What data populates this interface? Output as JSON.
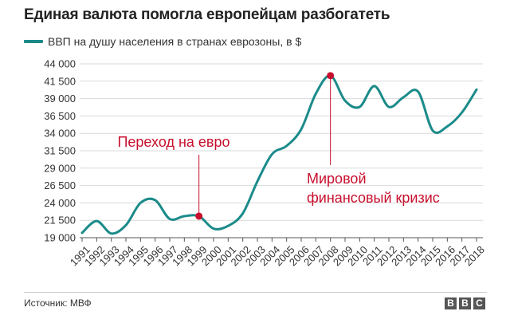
{
  "header": {
    "title": "Единая валюта помогла европейцам разбогатеть"
  },
  "legend": {
    "label": "ВВП на душу населения в странах еврозоны, в $"
  },
  "footer": {
    "source": "Источник: МВФ",
    "logo_letters": [
      "B",
      "B",
      "C"
    ]
  },
  "colors": {
    "line": "#1b8b8a",
    "marker": "#c8102e",
    "annotation": "#c8102e",
    "grid": "#d9d9d9",
    "axis": "#555555"
  },
  "chart_data": {
    "type": "line",
    "title": "Единая валюта помогла европейцам разбогатеть",
    "ylim": [
      19000,
      44000
    ],
    "grid": true,
    "y_ticks": [
      19000,
      21500,
      24000,
      26500,
      29000,
      31500,
      34000,
      36500,
      39000,
      41500,
      44000
    ],
    "y_tick_labels": [
      "19 000",
      "21 500",
      "24 000",
      "26 500",
      "29 000",
      "31 500",
      "34 000",
      "36 500",
      "39 000",
      "41 500",
      "44 000"
    ],
    "categories": [
      "1991",
      "1992",
      "1993",
      "1994",
      "1995",
      "1996",
      "1997",
      "1998",
      "1999",
      "2000",
      "2001",
      "2002",
      "2003",
      "2004",
      "2005",
      "2006",
      "2007",
      "2008",
      "2009",
      "2010",
      "2011",
      "2012",
      "2013",
      "2014",
      "2015",
      "2016",
      "2017",
      "2018"
    ],
    "series": [
      {
        "name": "ВВП на душу населения в странах еврозоны, в $",
        "values": [
          19700,
          21400,
          19600,
          20800,
          24000,
          24400,
          21700,
          22100,
          22100,
          20300,
          20700,
          22500,
          27100,
          31000,
          32200,
          34600,
          39700,
          42300,
          38700,
          37800,
          40800,
          37800,
          39200,
          40000,
          34400,
          35000,
          37000,
          40300
        ]
      }
    ],
    "annotations": [
      {
        "text": "Переход на евро",
        "x": "1999",
        "y": 22100,
        "lines": [
          "Переход на евро"
        ]
      },
      {
        "text": "Мировой финансовый кризис",
        "x": "2008",
        "y": 42300,
        "lines": [
          "Мировой",
          "финансовый кризис"
        ]
      }
    ]
  }
}
